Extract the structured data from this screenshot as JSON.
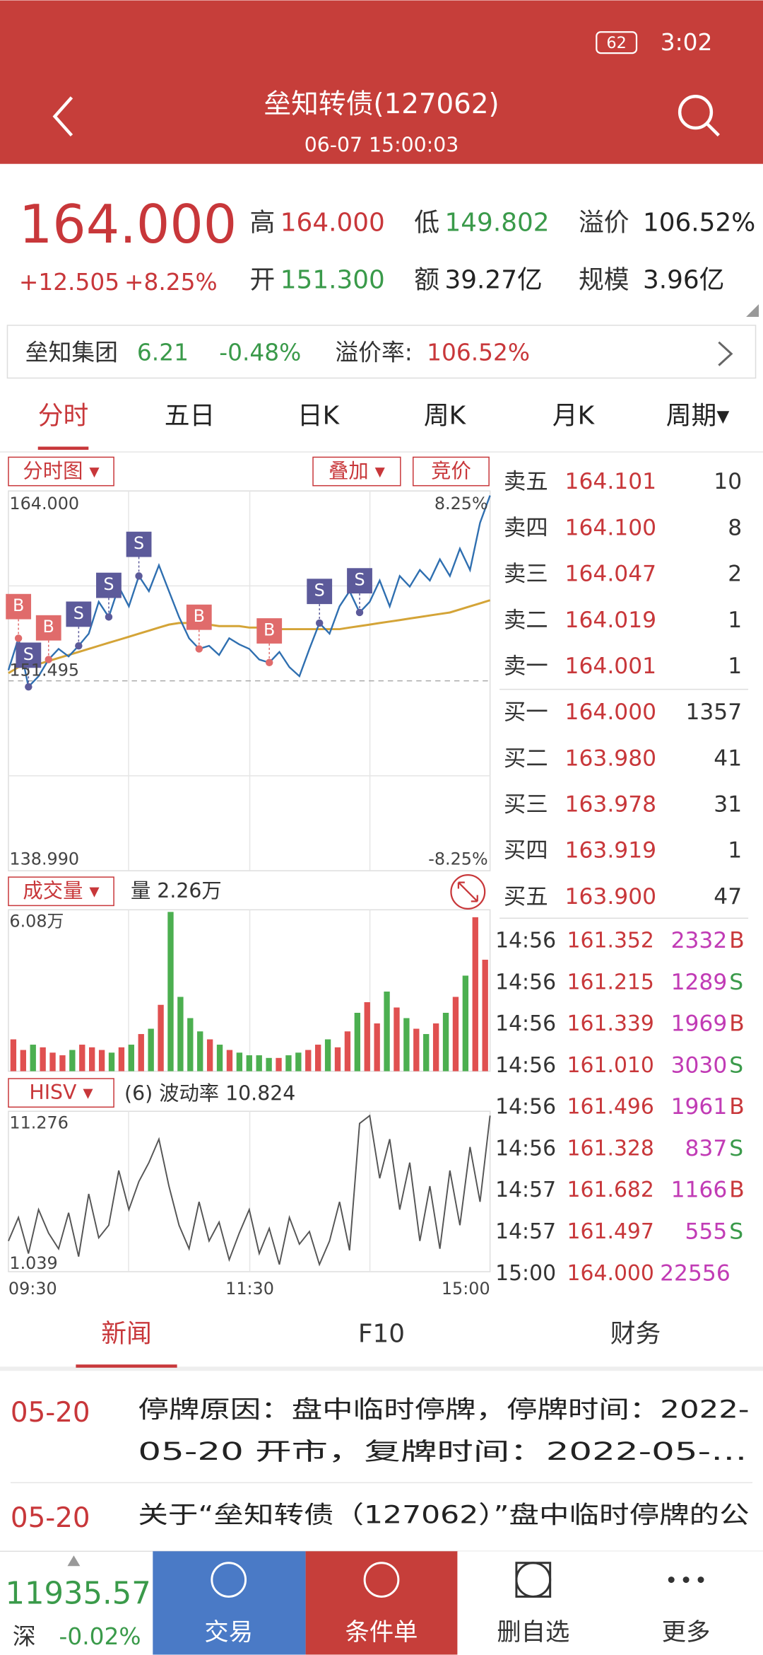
{
  "status": {
    "time": "3:02",
    "battery": "62"
  },
  "header": {
    "title": "垒知转债(127062)",
    "subtitle": "06-07 15:00:03"
  },
  "quote": {
    "price": "164.000",
    "change": "+12.505",
    "change_pct": "+8.25%",
    "fields": [
      {
        "label": "高",
        "value": "164.000",
        "color": "#c8373a"
      },
      {
        "label": "低",
        "value": "149.802",
        "color": "#3a9a4a"
      },
      {
        "label": "溢价",
        "value": "106.52%",
        "color": "#222222"
      },
      {
        "label": "开",
        "value": "151.300",
        "color": "#3a9a4a"
      },
      {
        "label": "额",
        "value": "39.27亿",
        "color": "#222222"
      },
      {
        "label": "规模",
        "value": "3.96亿",
        "color": "#222222"
      }
    ]
  },
  "stock": {
    "name": "垒知集团",
    "price": "6.21",
    "change": "-0.48%",
    "premium_label": "溢价率:",
    "premium": "106.52%"
  },
  "tabs": [
    "分时",
    "五日",
    "日K",
    "周K",
    "月K",
    "周期▾"
  ],
  "chart": {
    "buttons": [
      "分时图 ▾",
      "叠加 ▾",
      "竞价"
    ],
    "top_label": "164.000",
    "bottom_label": "138.990",
    "ref_label": "151.495",
    "pct_top": "8.25%",
    "pct_bottom": "-8.25%",
    "ylim": [
      138.99,
      164.0
    ],
    "ref": 151.495,
    "price": [
      152.2,
      154.3,
      151.1,
      151.8,
      152.9,
      153.6,
      153.1,
      153.8,
      154.6,
      156.7,
      155.7,
      157.7,
      156.4,
      158.4,
      157.4,
      159.1,
      157.4,
      155.7,
      154.3,
      153.6,
      153.8,
      153.2,
      154.3,
      153.9,
      153.6,
      152.9,
      152.7,
      153.4,
      152.4,
      151.8,
      153.6,
      155.3,
      154.6,
      156.4,
      157.4,
      156.0,
      156.7,
      158.1,
      156.4,
      158.4,
      157.7,
      158.8,
      158.1,
      159.5,
      158.4,
      160.2,
      158.8,
      161.9,
      163.7
    ],
    "avg": [
      152.0,
      152.4,
      152.5,
      152.6,
      152.8,
      153.0,
      153.2,
      153.4,
      153.6,
      153.8,
      154.0,
      154.2,
      154.4,
      154.6,
      154.8,
      155.0,
      155.2,
      155.3,
      155.3,
      155.2,
      155.2,
      155.1,
      155.1,
      155.1,
      155.0,
      155.0,
      155.0,
      154.9,
      154.9,
      154.9,
      154.9,
      154.9,
      154.9,
      154.9,
      155.0,
      155.1,
      155.2,
      155.3,
      155.4,
      155.5,
      155.6,
      155.7,
      155.8,
      155.9,
      156.0,
      156.2,
      156.4,
      156.6,
      156.8
    ],
    "markers": [
      {
        "label": "B",
        "index": 1
      },
      {
        "label": "S",
        "index": 2
      },
      {
        "label": "B",
        "index": 4
      },
      {
        "label": "S",
        "index": 7
      },
      {
        "label": "S",
        "index": 10
      },
      {
        "label": "S",
        "index": 13
      },
      {
        "label": "B",
        "index": 19
      },
      {
        "label": "B",
        "index": 26
      },
      {
        "label": "S",
        "index": 31
      },
      {
        "label": "S",
        "index": 35
      }
    ]
  },
  "volume": {
    "button": "成交量 ▾",
    "label": "量 2.26万",
    "top_label": "6.08万",
    "ylim": [
      0,
      6.08
    ],
    "values": [
      1.2,
      0.8,
      1.0,
      0.9,
      0.7,
      0.6,
      0.8,
      1.0,
      0.9,
      0.8,
      0.7,
      0.9,
      1.0,
      1.4,
      1.6,
      2.5,
      6.0,
      2.8,
      2.0,
      1.5,
      1.2,
      1.0,
      0.8,
      0.7,
      0.6,
      0.6,
      0.5,
      0.5,
      0.6,
      0.7,
      0.8,
      1.0,
      1.2,
      0.9,
      1.5,
      2.2,
      2.6,
      1.8,
      3.0,
      2.4,
      2.0,
      1.6,
      1.4,
      1.8,
      2.2,
      2.8,
      3.6,
      5.8,
      4.2
    ]
  },
  "hisv": {
    "button": "HISV ▾",
    "label": "(6) 波动率 10.824",
    "top_label": "11.276",
    "bottom_label": "1.039",
    "ylim": [
      1.039,
      11.276
    ],
    "values": [
      3.0,
      4.5,
      2.2,
      5.0,
      3.5,
      2.5,
      4.8,
      2.0,
      6.0,
      3.2,
      4.0,
      7.5,
      5.0,
      6.8,
      8.0,
      9.5,
      6.5,
      4.0,
      2.5,
      5.5,
      3.0,
      4.2,
      1.8,
      3.5,
      5.0,
      2.2,
      3.8,
      1.5,
      4.5,
      2.8,
      3.6,
      1.5,
      3.0,
      5.5,
      2.4,
      10.5,
      11.0,
      7.0,
      9.5,
      5.0,
      8.0,
      3.0,
      6.5,
      2.5,
      7.5,
      4.0,
      9.0,
      5.5,
      11.0
    ]
  },
  "times": [
    "09:30",
    "11:30",
    "15:00"
  ],
  "book": [
    {
      "label": "卖五",
      "price": "164.101",
      "volume": "10"
    },
    {
      "label": "卖四",
      "price": "164.100",
      "volume": "8"
    },
    {
      "label": "卖三",
      "price": "164.047",
      "volume": "2"
    },
    {
      "label": "卖二",
      "price": "164.019",
      "volume": "1"
    },
    {
      "label": "卖一",
      "price": "164.001",
      "volume": "1"
    },
    {
      "label": "买一",
      "price": "164.000",
      "volume": "1357"
    },
    {
      "label": "买二",
      "price": "163.980",
      "volume": "41"
    },
    {
      "label": "买三",
      "price": "163.978",
      "volume": "31"
    },
    {
      "label": "买四",
      "price": "163.919",
      "volume": "1"
    },
    {
      "label": "买五",
      "price": "163.900",
      "volume": "47"
    }
  ],
  "trades": [
    {
      "time": "14:56",
      "price": "161.352",
      "volume": "2332",
      "side": "B"
    },
    {
      "time": "14:56",
      "price": "161.215",
      "volume": "1289",
      "side": "S"
    },
    {
      "time": "14:56",
      "price": "161.339",
      "volume": "1969",
      "side": "B"
    },
    {
      "time": "14:56",
      "price": "161.010",
      "volume": "3030",
      "side": "S"
    },
    {
      "time": "14:56",
      "price": "161.496",
      "volume": "1961",
      "side": "B"
    },
    {
      "time": "14:56",
      "price": "161.328",
      "volume": "837",
      "side": "S"
    },
    {
      "time": "14:57",
      "price": "161.682",
      "volume": "1166",
      "side": "B"
    },
    {
      "time": "14:57",
      "price": "161.497",
      "volume": "555",
      "side": "S"
    },
    {
      "time": "15:00",
      "price": "164.000",
      "volume": "22556"
    }
  ],
  "news_tabs": [
    "新闻",
    "F10",
    "财务"
  ],
  "news": [
    {
      "date": "05-20",
      "lines": [
        "停牌原因：盘中临时停牌，停牌时间：2022-",
        "05-20 开市，复牌时间：2022-05-…"
      ]
    },
    {
      "date": "05-20",
      "lines": [
        "关于“垒知转债（127062）”盘中临时停牌的公"
      ]
    }
  ],
  "footer": {
    "index": "11935.57",
    "market": "深",
    "change": "-0.02%",
    "buttons": [
      "交易",
      "条件单",
      "删自选",
      "更多"
    ]
  }
}
